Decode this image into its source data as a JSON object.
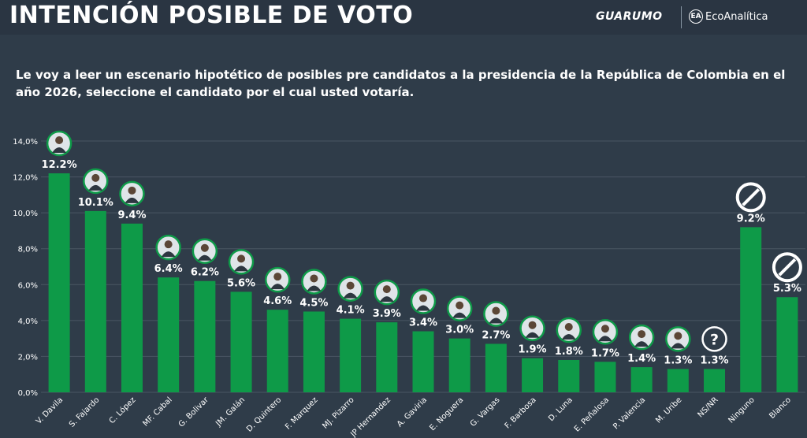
{
  "header": {
    "title": "INTENCIÓN POSIBLE DE VOTO",
    "logo_primary": "GUARUMO",
    "logo_secondary": "EcoAnalítica",
    "logo_secondary_mark": "EA"
  },
  "subtitle": "Le voy a leer un escenario hipotético de posibles  pre candidatos a la presidencia de la República de Colombia en el año 2026, seleccione el candidato por el cual usted votaría.",
  "colors": {
    "bar": "#0e9a48",
    "background": "#2f3c49",
    "grid": "#4a5663",
    "text": "#ffffff"
  },
  "chart_data": {
    "type": "bar",
    "title": "INTENCIÓN POSIBLE DE VOTO",
    "xlabel": "",
    "ylabel": "",
    "ylim": [
      0,
      14
    ],
    "ticks": [
      "0,0%",
      "2,0%",
      "4,0%",
      "6,0%",
      "8,0%",
      "10,0%",
      "12,0%",
      "14,0%"
    ],
    "tick_values": [
      0,
      2,
      4,
      6,
      8,
      10,
      12,
      14
    ],
    "grid": true,
    "categories": [
      "V. Davila",
      "S. Fajardo",
      "C. López",
      "MF. Cabal",
      "G. Bolivar",
      "JM. Galán",
      "D. Quintero",
      "F. Marquez",
      "MJ. Pizarro",
      "JP Hernandez",
      "A. Gaviria",
      "E. Noguera",
      "G. Vargas",
      "F. Barbosa",
      "D. Luna",
      "E. Peñalosa",
      "P. Valencia",
      "M. Uribe",
      "NS/NR",
      "Ninguno",
      "Blanco"
    ],
    "values": [
      12.2,
      10.1,
      9.4,
      6.4,
      6.2,
      5.6,
      4.6,
      4.5,
      4.1,
      3.9,
      3.4,
      3.0,
      2.7,
      1.9,
      1.8,
      1.7,
      1.4,
      1.3,
      1.3,
      9.2,
      5.3
    ],
    "labels": [
      "12.2%",
      "10.1%",
      "9.4%",
      "6.4%",
      "6.2%",
      "5.6%",
      "4.6%",
      "4.5%",
      "4.1%",
      "3.9%",
      "3.4%",
      "3.0%",
      "2.7%",
      "1.9%",
      "1.8%",
      "1.7%",
      "1.4%",
      "1.3%",
      "1.3%",
      "9.2%",
      "5.3%"
    ],
    "markers": [
      "avatar",
      "avatar",
      "avatar",
      "avatar",
      "avatar",
      "avatar",
      "avatar",
      "avatar",
      "avatar",
      "avatar",
      "avatar",
      "avatar",
      "avatar",
      "avatar",
      "avatar",
      "avatar",
      "avatar",
      "avatar",
      "question-icon",
      "prohibited-icon",
      "prohibited-icon"
    ]
  }
}
